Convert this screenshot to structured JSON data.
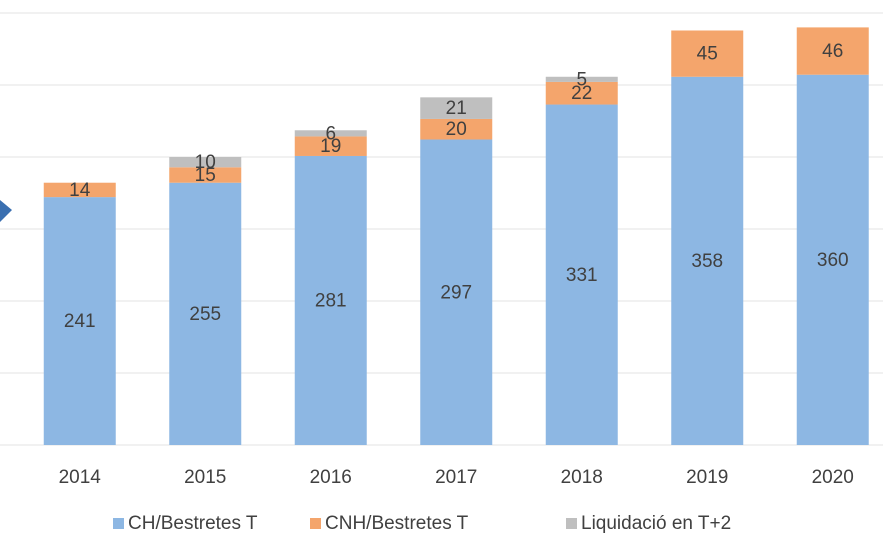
{
  "chart_data": {
    "type": "stacked_bar",
    "categories": [
      "2014",
      "2015",
      "2016",
      "2017",
      "2018",
      "2019",
      "2020"
    ],
    "series": [
      {
        "name": "CH/Bestretes T",
        "color": "#8db7e3",
        "values": [
          241,
          255,
          281,
          297,
          331,
          358,
          360
        ]
      },
      {
        "name": "CNH/Bestretes T",
        "color": "#f4a56c",
        "values": [
          14,
          15,
          19,
          20,
          22,
          45,
          46
        ]
      },
      {
        "name": "Liquidació en T+2",
        "color": "#bfbfbf",
        "values": [
          null,
          10,
          6,
          21,
          5,
          null,
          null
        ]
      }
    ],
    "ylim": [
      0,
      420
    ],
    "yticks": [
      0,
      70,
      140,
      210,
      280,
      350,
      420
    ],
    "grid": true,
    "legend": "bottom"
  }
}
